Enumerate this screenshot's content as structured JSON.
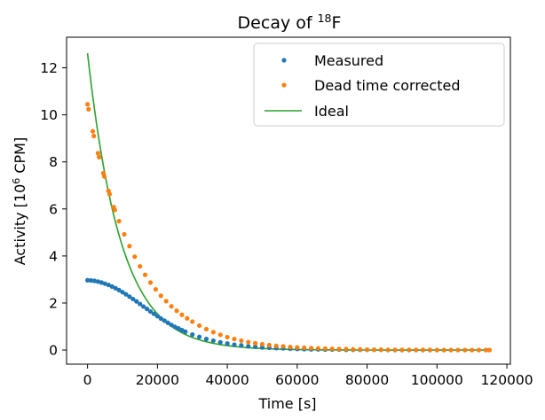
{
  "chart_data": {
    "type": "line",
    "title": "Decay of ",
    "title_superscript": "18",
    "title_element": "F",
    "xlabel": "Time [s]",
    "ylabel_prefix": "Activity [10",
    "ylabel_superscript": "6",
    "ylabel_suffix": " CPM]",
    "xlim": [
      -6000,
      121000
    ],
    "ylim": [
      -0.6,
      13.3
    ],
    "xticks": [
      0,
      20000,
      40000,
      60000,
      80000,
      100000,
      120000
    ],
    "yticks": [
      0,
      2,
      4,
      6,
      8,
      10,
      12
    ],
    "grid": false,
    "legend_position": "top-right",
    "ideal_model": {
      "A0": 12.62,
      "half_life_s": 6586
    },
    "dead_time_model": {
      "tau_per_million_cpm": 0.2571
    },
    "series": [
      {
        "name": "Measured",
        "style": "dots",
        "color": "#1f77b4",
        "x": [
          0,
          1000,
          2000,
          3000,
          4000,
          5000,
          6000,
          7000,
          8000,
          9000,
          10000,
          11000,
          12000,
          13000,
          14000,
          15000,
          16000,
          17000,
          18000,
          19000,
          20000,
          21000,
          22000,
          23000,
          24000,
          25000,
          26000,
          27000,
          28000,
          30000,
          32000,
          34000,
          36000,
          38000,
          40000,
          42000,
          44000,
          46000,
          48000,
          50000,
          52000,
          54000,
          56000,
          58000,
          60000,
          62000,
          64000,
          66000,
          68000,
          70000,
          72000,
          74000,
          76000,
          78000,
          80000,
          82000,
          84000,
          86000,
          88000,
          90000,
          92000,
          94000,
          96000,
          98000,
          100000,
          102000,
          104000,
          106000,
          108000,
          110000,
          112000,
          114000,
          115000
        ],
        "values": [
          2.97,
          2.96,
          2.94,
          2.91,
          2.87,
          2.82,
          2.77,
          2.7,
          2.63,
          2.55,
          2.46,
          2.37,
          2.27,
          2.17,
          2.07,
          1.96,
          1.85,
          1.75,
          1.64,
          1.54,
          1.44,
          1.34,
          1.25,
          1.16,
          1.07,
          0.99,
          0.92,
          0.85,
          0.78,
          0.66,
          0.56,
          0.47,
          0.4,
          0.33,
          0.28,
          0.23,
          0.2,
          0.16,
          0.14,
          0.11,
          0.1,
          0.08,
          0.07,
          0.06,
          0.05,
          0.04,
          0.03,
          0.03,
          0.02,
          0.02,
          0.02,
          0.01,
          0.01,
          0.01,
          0.01,
          0.01,
          0.01,
          0.0,
          0.0,
          0.0,
          0.0,
          0.0,
          0.0,
          0.0,
          0.0,
          0.0,
          0.0,
          0.0,
          0.0,
          0.0,
          0.0,
          0.0,
          0.0
        ]
      },
      {
        "name": "Dead time corrected",
        "style": "dots",
        "color": "#ff7f0e",
        "x": [
          0,
          300,
          1500,
          1800,
          3000,
          3300,
          4500,
          4800,
          6000,
          6300,
          7500,
          7800,
          9000,
          10500,
          12000,
          13500,
          15000,
          16500,
          18000,
          19500,
          21000,
          22500,
          24000,
          25500,
          27000,
          28500,
          30000,
          32000,
          34000,
          36000,
          38000,
          40000,
          42000,
          44000,
          46000,
          48000,
          50000,
          52000,
          54000,
          56000,
          58000,
          60000,
          62000,
          64000,
          66000,
          68000,
          70000,
          72000,
          74000,
          76000,
          78000,
          80000,
          82000,
          84000,
          86000,
          88000,
          90000,
          92000,
          94000,
          96000,
          98000,
          100000,
          102000,
          104000,
          106000,
          108000,
          110000,
          112000,
          114000,
          115000
        ],
        "values": [
          10.45,
          10.24,
          9.3,
          9.1,
          8.37,
          8.2,
          7.52,
          7.38,
          6.77,
          6.63,
          6.08,
          5.96,
          5.48,
          4.92,
          4.42,
          3.97,
          3.56,
          3.2,
          2.87,
          2.58,
          2.31,
          2.08,
          1.86,
          1.67,
          1.5,
          1.35,
          1.21,
          1.04,
          0.89,
          0.76,
          0.65,
          0.55,
          0.47,
          0.4,
          0.34,
          0.29,
          0.25,
          0.21,
          0.18,
          0.16,
          0.13,
          0.11,
          0.1,
          0.08,
          0.07,
          0.06,
          0.05,
          0.04,
          0.04,
          0.03,
          0.03,
          0.02,
          0.02,
          0.02,
          0.01,
          0.01,
          0.01,
          0.01,
          0.01,
          0.01,
          0.01,
          0.0,
          0.0,
          0.0,
          0.0,
          0.0,
          0.0,
          0.0,
          0.0,
          0.0
        ]
      },
      {
        "name": "Ideal",
        "style": "line",
        "color": "#2ca02c"
      }
    ]
  }
}
